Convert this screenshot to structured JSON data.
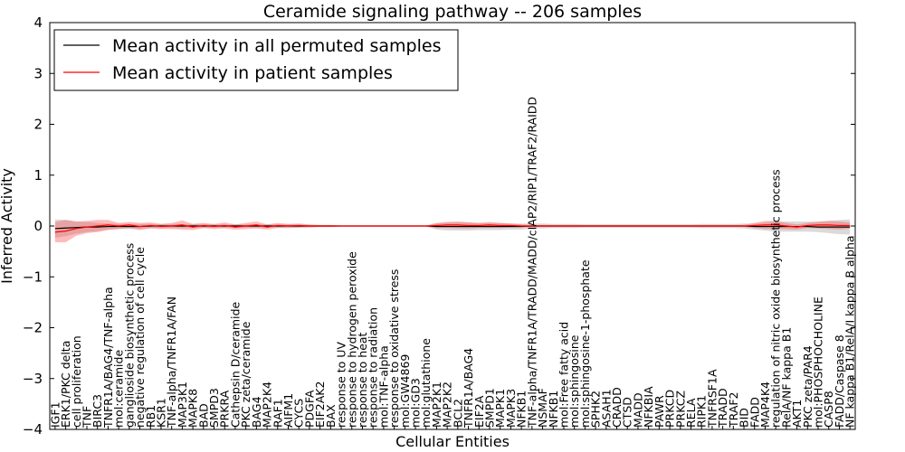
{
  "chart_data": {
    "type": "line",
    "title": "Ceramide signaling pathway -- 206 samples",
    "xlabel": "Cellular Entities",
    "ylabel": "Inferred Activity",
    "ylim": [
      -4,
      4
    ],
    "yticks": [
      -4,
      -3,
      -2,
      -1,
      0,
      1,
      2,
      3,
      4
    ],
    "ytick_labels": [
      "−4",
      "−3",
      "−2",
      "−1",
      "0",
      "1",
      "2",
      "3",
      "4"
    ],
    "legend_position": "top-left",
    "categories": [
      "IGF1",
      "ERK1/PKC delta",
      "cell proliferation",
      "TNF",
      "BIRC3",
      "TNFR1A/BAG4/TNF-alpha",
      "mol:ceramide",
      "ganglioside biosynthetic process",
      "negative regulation of cell cycle",
      "RB1",
      "KSR1",
      "TNF-alpha/TNFR1A/FAN",
      "MAP3K1",
      "MAPK8",
      "BAD",
      "SMPD3",
      "PRKRA",
      "Cathepsin D/ceramide",
      "PKC zeta/ceramide",
      "BAG4",
      "MAP2K4",
      "RAF1",
      "AIFM1",
      "CYCS",
      "PDGFA",
      "EIF2AK2",
      "BAX",
      "response to UV",
      "response to hydrogen peroxide",
      "response to heat",
      "response to radiation",
      "mol:TNF-alpha",
      "response to oxidative stress",
      "mol:GW4869",
      "mol:GD3",
      "mol:glutathione",
      "MAP2K1",
      "MAP2K2",
      "BCL2",
      "TNFR1A/BAG4",
      "EIF2A",
      "SMPD1",
      "MAPK1",
      "MAPK3",
      "NFKB1",
      "TNF-alpha/TNFR1A/TRADD/MADD/cIAP2/RIP1/TRAF2/RAIDD",
      "NSMAF",
      "NFKB1",
      "mol:Free fatty acid",
      "mol:sphingosine",
      "mol:sphingosine-1-phosphate",
      "SPHK2",
      "ASAH1",
      "CRADD",
      "CTSD",
      "MADD",
      "NFKBIA",
      "PAWR",
      "PRKCD",
      "PRKCZ",
      "RELA",
      "RIPK1",
      "TNFRSF1A",
      "TRADD",
      "TRAF2",
      "BID",
      "FADD",
      "MAP4K4",
      "regulation of nitric oxide biosynthetic process",
      "RelA/NF kappa B1",
      "AKT1",
      "PKC zeta/PAR4",
      "mol:PHOSPHOCHOLINE",
      "CASP8",
      "FADD/Caspase 8",
      "NF kappa B1/RelA/I kappa B alpha"
    ],
    "series": [
      {
        "name": "Mean activity in all permuted samples",
        "color": "#000000",
        "values": [
          -0.05,
          -0.04,
          -0.03,
          -0.02,
          -0.02,
          -0.01,
          -0.01,
          -0.01,
          -0.01,
          0,
          0,
          0,
          0,
          0,
          0,
          0,
          0,
          0,
          0,
          0,
          0,
          0,
          0,
          0,
          0,
          0,
          0,
          0,
          0,
          0,
          0,
          0,
          0,
          0,
          0,
          0,
          -0.01,
          -0.01,
          -0.01,
          -0.01,
          -0.01,
          -0.01,
          -0.01,
          -0.01,
          -0.01,
          0,
          0,
          0,
          0,
          0,
          0,
          0,
          0,
          0,
          0,
          0,
          0,
          0,
          0,
          0,
          0,
          0,
          0,
          0,
          0,
          0,
          -0.01,
          -0.01,
          -0.01,
          -0.01,
          -0.01,
          -0.01,
          -0.02,
          -0.02,
          -0.02,
          -0.02
        ],
        "std": [
          0.18,
          0.16,
          0.12,
          0.1,
          0.08,
          0.06,
          0.05,
          0.05,
          0.05,
          0.04,
          0.04,
          0.04,
          0.04,
          0.04,
          0.04,
          0.03,
          0.03,
          0.03,
          0.03,
          0.03,
          0.03,
          0.03,
          0.03,
          0.03,
          0.02,
          0.02,
          0.02,
          0.01,
          0.01,
          0.01,
          0.01,
          0.01,
          0.01,
          0.01,
          0.01,
          0.01,
          0.06,
          0.08,
          0.08,
          0.08,
          0.07,
          0.07,
          0.07,
          0.06,
          0.06,
          0.05,
          0.05,
          0.04,
          0.04,
          0.04,
          0.03,
          0.03,
          0.03,
          0.03,
          0.03,
          0.03,
          0.03,
          0.03,
          0.03,
          0.03,
          0.03,
          0.04,
          0.04,
          0.04,
          0.04,
          0.05,
          0.06,
          0.08,
          0.1,
          0.1,
          0.1,
          0.1,
          0.1,
          0.12,
          0.14,
          0.15
        ]
      },
      {
        "name": "Mean activity in patient samples",
        "color": "#ff0000",
        "values": [
          -0.12,
          -0.1,
          -0.05,
          -0.02,
          0,
          0.02,
          0,
          0.02,
          -0.01,
          0.01,
          -0.01,
          0,
          0.02,
          -0.02,
          0.01,
          -0.01,
          0.01,
          -0.02,
          0,
          0.02,
          -0.02,
          0.01,
          0,
          0.01,
          0,
          0,
          0,
          0,
          0,
          0,
          0,
          0,
          0,
          0,
          0,
          0,
          0.01,
          0.02,
          0.02,
          0.01,
          0.01,
          0.02,
          0.01,
          0.01,
          0,
          0,
          0,
          0,
          0,
          0,
          0,
          0,
          0,
          0,
          0,
          0,
          0,
          0,
          0,
          0,
          0,
          0,
          0,
          0,
          0,
          0,
          0.01,
          0.02,
          0.02,
          0,
          -0.02,
          0.01,
          0.02,
          0.02,
          0.01,
          0.01
        ],
        "std": [
          0.2,
          0.22,
          0.14,
          0.12,
          0.12,
          0.1,
          0.06,
          0.06,
          0.07,
          0.06,
          0.05,
          0.06,
          0.09,
          0.06,
          0.05,
          0.05,
          0.06,
          0.05,
          0.06,
          0.07,
          0.05,
          0.05,
          0.04,
          0.04,
          0.03,
          0.02,
          0.02,
          0.01,
          0.01,
          0.01,
          0.01,
          0.01,
          0.01,
          0.01,
          0.01,
          0.01,
          0.05,
          0.06,
          0.07,
          0.06,
          0.05,
          0.06,
          0.05,
          0.04,
          0.03,
          0.02,
          0.02,
          0.02,
          0.02,
          0.02,
          0.02,
          0.02,
          0.02,
          0.02,
          0.02,
          0.02,
          0.02,
          0.02,
          0.02,
          0.02,
          0.02,
          0.02,
          0.02,
          0.02,
          0.02,
          0.02,
          0.05,
          0.08,
          0.08,
          0.06,
          0.05,
          0.05,
          0.07,
          0.08,
          0.08,
          0.06
        ]
      }
    ]
  }
}
